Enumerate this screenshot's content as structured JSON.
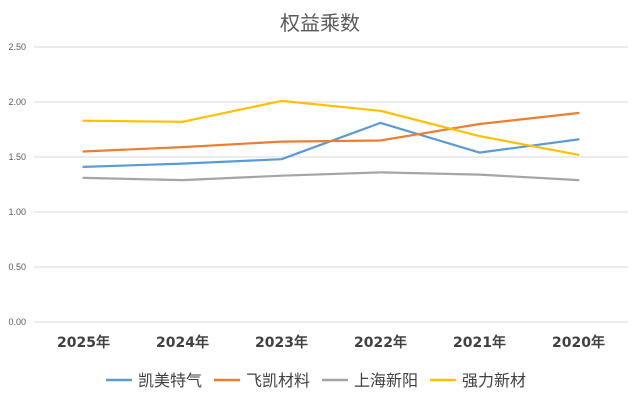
{
  "chart_data": {
    "type": "line",
    "title": "权益乘数",
    "xlabel": "",
    "ylabel": "",
    "categories": [
      "2025年",
      "2024年",
      "2023年",
      "2022年",
      "2021年",
      "2020年"
    ],
    "ylim": [
      0,
      2.5
    ],
    "yticks": [
      "0.00",
      "0.50",
      "1.00",
      "1.50",
      "2.00",
      "2.50"
    ],
    "grid": true,
    "legend_position": "bottom",
    "series": [
      {
        "name": "凯美特气",
        "color": "#5b9bd5",
        "values": [
          1.41,
          1.44,
          1.48,
          1.81,
          1.54,
          1.66
        ]
      },
      {
        "name": "飞凯材料",
        "color": "#ed7d31",
        "values": [
          1.55,
          1.59,
          1.64,
          1.65,
          1.8,
          1.9
        ]
      },
      {
        "name": "上海新阳",
        "color": "#a5a5a5",
        "values": [
          1.31,
          1.29,
          1.33,
          1.36,
          1.34,
          1.29
        ]
      },
      {
        "name": "强力新材",
        "color": "#ffc000",
        "values": [
          1.83,
          1.82,
          2.01,
          1.92,
          1.69,
          1.52
        ]
      }
    ]
  }
}
